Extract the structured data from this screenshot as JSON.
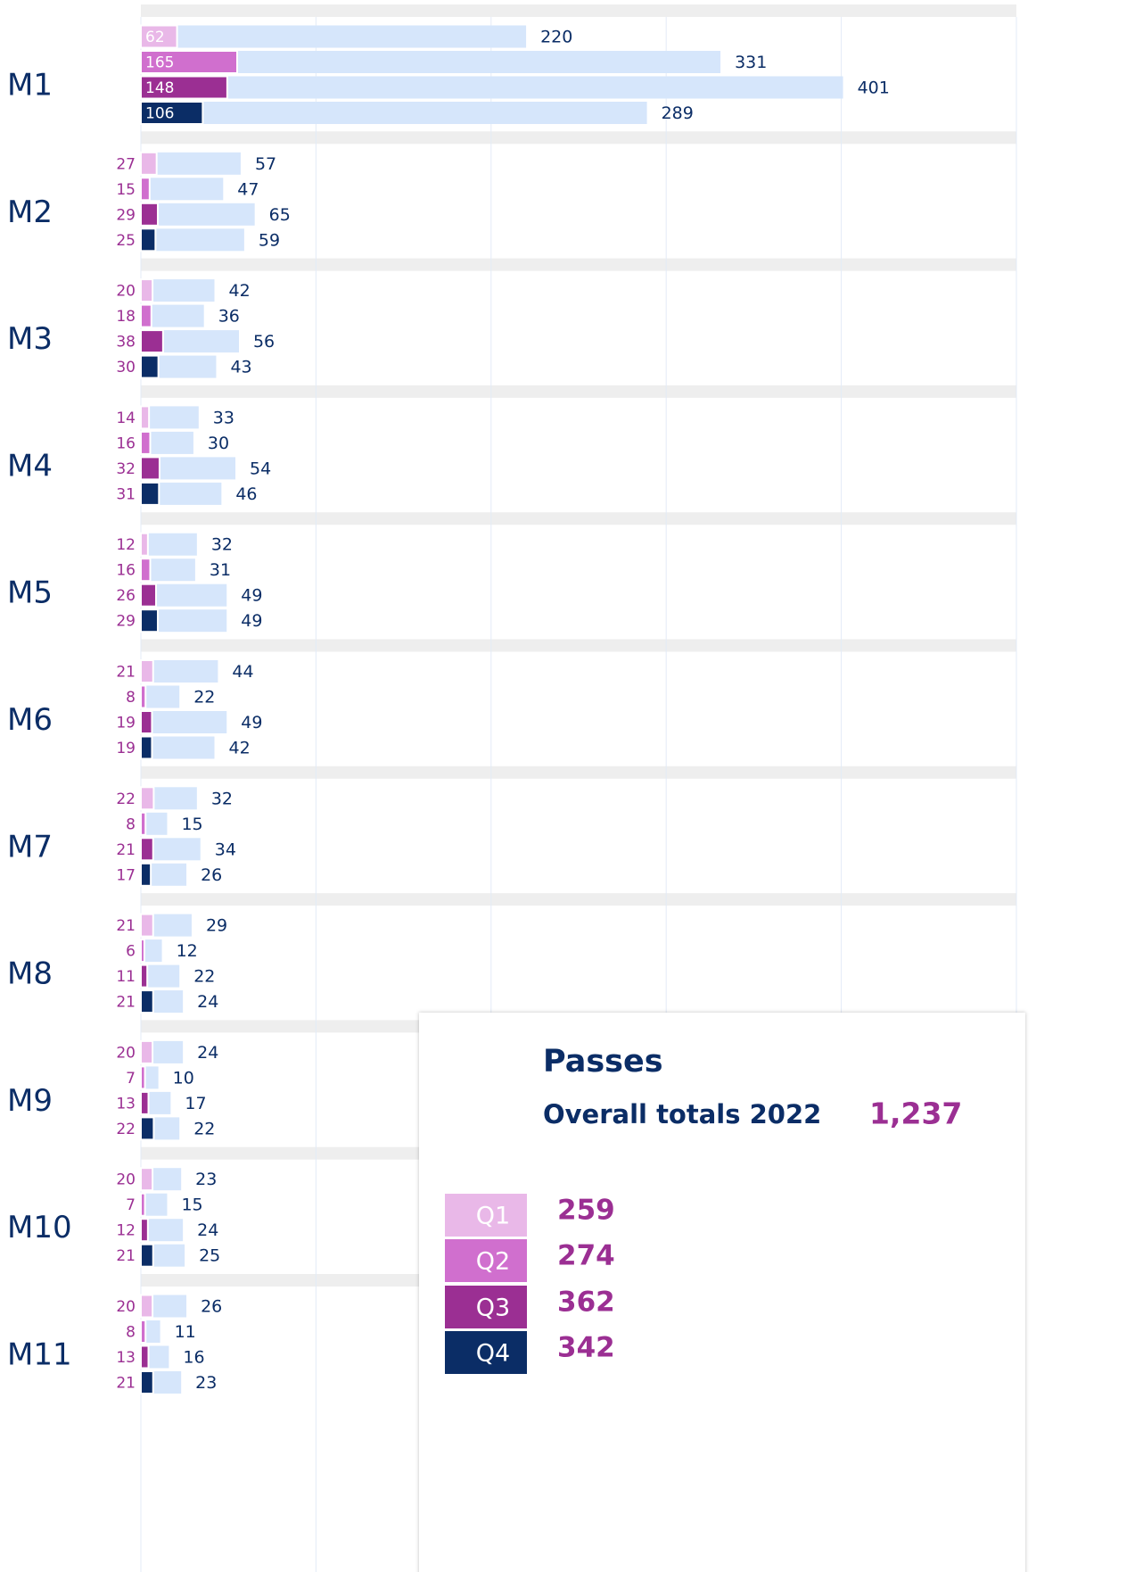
{
  "chart_data": {
    "type": "bar",
    "categories": [
      "M1",
      "M2",
      "M3",
      "M4",
      "M5",
      "M6",
      "M7",
      "M8",
      "M9",
      "M10",
      "M11"
    ],
    "series": [
      {
        "name": "Q1",
        "color": "#e9b8e8",
        "values": [
          62,
          27,
          20,
          14,
          12,
          21,
          22,
          21,
          20,
          20,
          20
        ],
        "totals": [
          220,
          57,
          42,
          33,
          32,
          44,
          32,
          29,
          24,
          23,
          26
        ]
      },
      {
        "name": "Q2",
        "color": "#d06fce",
        "values": [
          165,
          15,
          18,
          16,
          16,
          8,
          8,
          6,
          7,
          7,
          8
        ],
        "totals": [
          331,
          47,
          36,
          30,
          31,
          22,
          15,
          12,
          10,
          15,
          11
        ]
      },
      {
        "name": "Q3",
        "color": "#9b2f93",
        "values": [
          148,
          29,
          38,
          32,
          26,
          19,
          21,
          11,
          13,
          12,
          13
        ],
        "totals": [
          401,
          65,
          56,
          54,
          49,
          49,
          34,
          22,
          17,
          24,
          16
        ]
      },
      {
        "name": "Q4",
        "color": "#0b2d66",
        "values": [
          106,
          25,
          30,
          31,
          29,
          19,
          17,
          21,
          22,
          21,
          21
        ],
        "totals": [
          289,
          59,
          43,
          46,
          49,
          42,
          26,
          24,
          22,
          25,
          23
        ]
      }
    ],
    "totals_color": "#d6e6fb",
    "xlim": [
      0,
      500
    ],
    "xticks": [
      0,
      100,
      200,
      300,
      400,
      500
    ],
    "x2lim": [
      0,
      1500
    ],
    "grid": true,
    "legend": {
      "title": "Passes",
      "total_label": "Overall totals 2022",
      "total": {
        "value": 1237,
        "label": "1,237"
      },
      "quarter_totals": [
        259,
        274,
        362,
        342
      ]
    }
  }
}
